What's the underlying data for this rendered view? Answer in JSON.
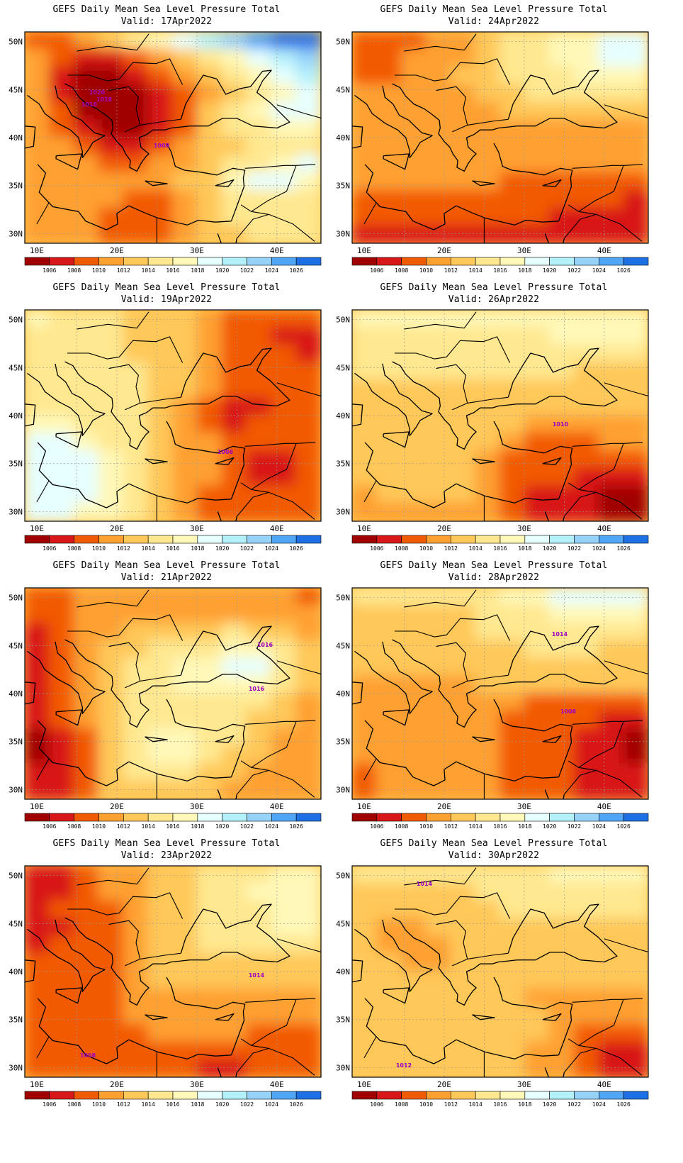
{
  "colorbar": {
    "levels": [
      "1006",
      "1008",
      "1010",
      "1012",
      "1014",
      "1016",
      "1018",
      "1020",
      "1022",
      "1024",
      "1026"
    ],
    "colors": [
      "#a00000",
      "#d81818",
      "#f25a00",
      "#ffa030",
      "#ffc858",
      "#ffe890",
      "#fff8b8",
      "#e6ffff",
      "#b4f0fa",
      "#96d2fa",
      "#50a5f5",
      "#1e6ee6"
    ]
  },
  "axes": {
    "lon_ticks": [
      "10E",
      "20E",
      "30E",
      "40E"
    ],
    "lat_ticks": [
      "50N",
      "45N",
      "40N",
      "35N",
      "30N"
    ]
  },
  "panels": [
    {
      "title": "GEFS Daily Mean Sea Level Pressure Total",
      "valid": "Valid: 17Apr2022",
      "contour_labels": [
        "1020",
        "1018",
        "1016",
        "1008"
      ],
      "levels": [
        2,
        2,
        3,
        4,
        5,
        6,
        7,
        8,
        9,
        10,
        11,
        11,
        3,
        2,
        1,
        1,
        2,
        3,
        4,
        5,
        6,
        7,
        8,
        9,
        3,
        1,
        0,
        0,
        1,
        2,
        3,
        4,
        5,
        6,
        7,
        8,
        3,
        1,
        0,
        0,
        0,
        1,
        2,
        3,
        4,
        5,
        6,
        7,
        3,
        2,
        0,
        0,
        0,
        1,
        2,
        4,
        5,
        6,
        7,
        7,
        3,
        2,
        1,
        0,
        0,
        1,
        2,
        4,
        5,
        5,
        6,
        6,
        3,
        3,
        2,
        1,
        1,
        2,
        3,
        4,
        4,
        5,
        5,
        5,
        3,
        3,
        3,
        2,
        2,
        3,
        3,
        4,
        5,
        5,
        6,
        7,
        3,
        3,
        3,
        3,
        3,
        3,
        4,
        4,
        6,
        7,
        7,
        6,
        3,
        3,
        3,
        3,
        2,
        2,
        3,
        4,
        5,
        5,
        5,
        5,
        3,
        3,
        3,
        2,
        2,
        2,
        3,
        4,
        5,
        5,
        5,
        5,
        3,
        3,
        3,
        2,
        2,
        2,
        3,
        4,
        4,
        5,
        5,
        5
      ]
    },
    {
      "title": "GEFS Daily Mean Sea Level Pressure Total",
      "valid": "Valid: 24Apr2022",
      "contour_labels": [],
      "levels": [
        2,
        2,
        2,
        3,
        3,
        4,
        5,
        5,
        6,
        6,
        7,
        7,
        2,
        2,
        3,
        3,
        3,
        4,
        5,
        5,
        6,
        6,
        7,
        7,
        2,
        2,
        3,
        3,
        4,
        4,
        5,
        5,
        5,
        6,
        6,
        6,
        3,
        3,
        3,
        3,
        3,
        4,
        4,
        5,
        5,
        5,
        5,
        5,
        3,
        3,
        3,
        3,
        3,
        3,
        4,
        4,
        4,
        4,
        4,
        4,
        3,
        3,
        3,
        3,
        3,
        3,
        3,
        3,
        3,
        3,
        3,
        3,
        3,
        3,
        3,
        3,
        3,
        3,
        3,
        3,
        3,
        3,
        3,
        3,
        3,
        3,
        3,
        3,
        3,
        3,
        3,
        3,
        3,
        3,
        3,
        3,
        3,
        3,
        3,
        3,
        3,
        3,
        2,
        2,
        2,
        2,
        2,
        2,
        2,
        2,
        2,
        2,
        2,
        2,
        2,
        2,
        2,
        2,
        2,
        1,
        2,
        2,
        2,
        2,
        2,
        2,
        2,
        2,
        1,
        1,
        1,
        1,
        1,
        1,
        1,
        1,
        1,
        1,
        1,
        1,
        1,
        1,
        1,
        1
      ]
    },
    {
      "title": "GEFS Daily Mean Sea Level Pressure Total",
      "valid": "Valid: 19Apr2022",
      "contour_labels": [
        "1008"
      ],
      "levels": [
        6,
        5,
        5,
        5,
        4,
        4,
        4,
        3,
        2,
        2,
        2,
        2,
        5,
        5,
        5,
        5,
        4,
        4,
        4,
        3,
        2,
        2,
        1,
        1,
        5,
        5,
        5,
        5,
        4,
        4,
        4,
        3,
        2,
        2,
        2,
        1,
        5,
        5,
        5,
        5,
        5,
        4,
        4,
        3,
        2,
        2,
        2,
        2,
        5,
        5,
        5,
        5,
        5,
        4,
        4,
        3,
        2,
        2,
        2,
        2,
        5,
        5,
        5,
        5,
        5,
        4,
        3,
        2,
        1,
        1,
        2,
        2,
        6,
        6,
        5,
        5,
        5,
        4,
        3,
        2,
        1,
        2,
        2,
        2,
        7,
        7,
        6,
        5,
        5,
        4,
        3,
        3,
        2,
        2,
        2,
        2,
        7,
        7,
        7,
        6,
        5,
        4,
        3,
        3,
        2,
        1,
        1,
        2,
        7,
        7,
        7,
        6,
        5,
        4,
        3,
        3,
        2,
        1,
        1,
        2,
        7,
        7,
        7,
        6,
        5,
        4,
        3,
        2,
        2,
        2,
        2,
        2,
        7,
        7,
        6,
        6,
        5,
        4,
        3,
        2,
        2,
        2,
        2,
        2
      ]
    },
    {
      "title": "GEFS Daily Mean Sea Level Pressure Total",
      "valid": "Valid: 26Apr2022",
      "contour_labels": [
        "1010"
      ],
      "levels": [
        6,
        6,
        6,
        6,
        6,
        6,
        6,
        6,
        6,
        6,
        6,
        6,
        5,
        5,
        5,
        5,
        5,
        5,
        5,
        5,
        6,
        6,
        6,
        6,
        5,
        5,
        5,
        5,
        5,
        5,
        5,
        5,
        5,
        5,
        5,
        5,
        5,
        5,
        5,
        5,
        5,
        5,
        5,
        5,
        5,
        4,
        4,
        4,
        4,
        4,
        4,
        4,
        4,
        4,
        4,
        4,
        4,
        4,
        4,
        4,
        4,
        4,
        4,
        4,
        4,
        4,
        4,
        4,
        4,
        4,
        4,
        4,
        4,
        4,
        4,
        4,
        4,
        4,
        4,
        3,
        3,
        3,
        3,
        3,
        4,
        4,
        4,
        4,
        4,
        4,
        3,
        2,
        2,
        2,
        3,
        3,
        4,
        4,
        4,
        4,
        4,
        3,
        2,
        2,
        2,
        2,
        2,
        2,
        4,
        4,
        4,
        4,
        4,
        3,
        2,
        2,
        2,
        1,
        1,
        1,
        3,
        4,
        4,
        4,
        4,
        3,
        2,
        1,
        1,
        1,
        0,
        0,
        3,
        3,
        3,
        3,
        3,
        3,
        2,
        1,
        1,
        1,
        0,
        0
      ]
    },
    {
      "title": "GEFS Daily Mean Sea Level Pressure Total",
      "valid": "Valid: 21Apr2022",
      "contour_labels": [
        "1016",
        "1016"
      ],
      "levels": [
        2,
        2,
        3,
        3,
        3,
        3,
        3,
        3,
        3,
        3,
        3,
        2,
        2,
        2,
        3,
        3,
        3,
        3,
        3,
        3,
        3,
        3,
        3,
        3,
        1,
        2,
        3,
        3,
        4,
        4,
        4,
        4,
        5,
        4,
        4,
        3,
        1,
        2,
        3,
        4,
        4,
        5,
        5,
        5,
        6,
        6,
        5,
        4,
        1,
        2,
        3,
        4,
        5,
        5,
        6,
        6,
        7,
        7,
        5,
        4,
        1,
        2,
        3,
        4,
        5,
        5,
        6,
        6,
        6,
        6,
        5,
        4,
        1,
        2,
        3,
        4,
        5,
        5,
        5,
        5,
        5,
        5,
        4,
        3,
        1,
        2,
        3,
        4,
        5,
        5,
        5,
        5,
        5,
        4,
        4,
        3,
        0,
        1,
        2,
        4,
        5,
        6,
        6,
        5,
        5,
        4,
        3,
        3,
        0,
        1,
        2,
        4,
        5,
        6,
        6,
        5,
        4,
        4,
        3,
        3,
        1,
        1,
        2,
        4,
        5,
        5,
        5,
        4,
        4,
        3,
        3,
        3,
        1,
        1,
        2,
        4,
        4,
        4,
        4,
        4,
        3,
        3,
        3,
        3
      ]
    },
    {
      "title": "GEFS Daily Mean Sea Level Pressure Total",
      "valid": "Valid: 28Apr2022",
      "contour_labels": [
        "1014",
        "1008"
      ],
      "levels": [
        5,
        5,
        5,
        5,
        5,
        5,
        6,
        6,
        7,
        7,
        7,
        7,
        4,
        4,
        4,
        4,
        4,
        5,
        5,
        5,
        6,
        6,
        6,
        6,
        4,
        4,
        4,
        4,
        4,
        5,
        5,
        5,
        5,
        5,
        5,
        5,
        4,
        4,
        4,
        4,
        4,
        4,
        4,
        5,
        5,
        5,
        4,
        4,
        4,
        4,
        4,
        4,
        4,
        4,
        4,
        4,
        4,
        4,
        4,
        4,
        3,
        3,
        3,
        3,
        3,
        4,
        4,
        4,
        4,
        4,
        4,
        4,
        3,
        3,
        3,
        3,
        3,
        3,
        3,
        2,
        2,
        2,
        2,
        2,
        3,
        3,
        3,
        3,
        3,
        3,
        2,
        2,
        2,
        2,
        1,
        1,
        3,
        3,
        3,
        3,
        3,
        3,
        2,
        2,
        2,
        1,
        1,
        0,
        3,
        3,
        3,
        3,
        3,
        3,
        2,
        2,
        2,
        1,
        1,
        0,
        2,
        3,
        3,
        3,
        3,
        3,
        2,
        2,
        2,
        1,
        1,
        1,
        2,
        3,
        3,
        3,
        3,
        3,
        2,
        2,
        2,
        1,
        1,
        1
      ]
    },
    {
      "title": "GEFS Daily Mean Sea Level Pressure Total",
      "valid": "Valid: 23Apr2022",
      "contour_labels": [
        "1014",
        "1008"
      ],
      "levels": [
        1,
        1,
        2,
        3,
        3,
        4,
        4,
        5,
        5,
        5,
        6,
        6,
        1,
        1,
        2,
        3,
        3,
        4,
        4,
        5,
        5,
        6,
        6,
        6,
        1,
        2,
        2,
        2,
        3,
        4,
        4,
        5,
        5,
        5,
        6,
        6,
        1,
        1,
        2,
        2,
        3,
        4,
        4,
        5,
        5,
        5,
        6,
        6,
        1,
        2,
        2,
        2,
        3,
        4,
        4,
        5,
        5,
        5,
        5,
        5,
        2,
        2,
        2,
        2,
        3,
        4,
        4,
        4,
        4,
        4,
        4,
        4,
        2,
        2,
        2,
        2,
        3,
        4,
        4,
        4,
        4,
        4,
        4,
        4,
        2,
        2,
        2,
        2,
        3,
        3,
        3,
        3,
        3,
        3,
        3,
        3,
        2,
        2,
        2,
        2,
        3,
        3,
        3,
        3,
        3,
        3,
        3,
        3,
        2,
        2,
        2,
        2,
        2,
        3,
        3,
        3,
        3,
        2,
        2,
        2,
        2,
        2,
        2,
        2,
        2,
        2,
        2,
        2,
        2,
        2,
        2,
        2,
        2,
        2,
        2,
        2,
        2,
        2,
        2,
        1,
        1,
        2,
        2,
        2
      ]
    },
    {
      "title": "GEFS Daily Mean Sea Level Pressure Total",
      "valid": "Valid: 30Apr2022",
      "contour_labels": [
        "1014",
        "1012"
      ],
      "levels": [
        5,
        5,
        5,
        5,
        5,
        5,
        5,
        5,
        6,
        6,
        6,
        6,
        4,
        4,
        4,
        4,
        4,
        5,
        5,
        5,
        5,
        5,
        5,
        5,
        4,
        4,
        4,
        4,
        4,
        4,
        5,
        5,
        5,
        5,
        5,
        5,
        4,
        3,
        3,
        4,
        4,
        4,
        4,
        4,
        4,
        4,
        4,
        4,
        4,
        3,
        3,
        3,
        4,
        4,
        4,
        4,
        4,
        4,
        4,
        4,
        4,
        4,
        3,
        3,
        4,
        4,
        4,
        4,
        4,
        4,
        4,
        4,
        4,
        4,
        4,
        4,
        4,
        4,
        4,
        4,
        4,
        4,
        4,
        4,
        4,
        4,
        4,
        4,
        4,
        4,
        4,
        3,
        3,
        3,
        3,
        3,
        4,
        4,
        4,
        4,
        4,
        4,
        4,
        4,
        3,
        3,
        3,
        3,
        4,
        4,
        4,
        4,
        4,
        4,
        4,
        4,
        3,
        2,
        2,
        2,
        4,
        4,
        4,
        4,
        4,
        4,
        4,
        3,
        3,
        2,
        1,
        1,
        4,
        4,
        4,
        4,
        4,
        4,
        4,
        3,
        3,
        2,
        1,
        1
      ]
    }
  ]
}
